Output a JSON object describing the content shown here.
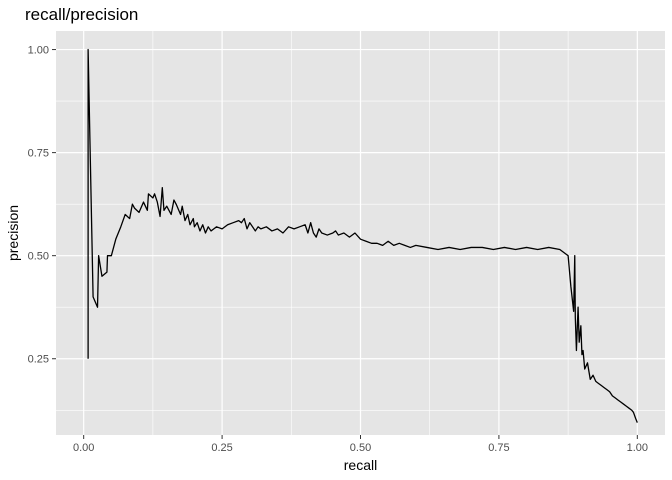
{
  "chart_data": {
    "type": "line",
    "title": "recall/precision",
    "xlabel": "recall",
    "ylabel": "precision",
    "xlim": [
      -0.05,
      1.05
    ],
    "ylim": [
      0.065,
      1.045
    ],
    "x_ticks": [
      {
        "value": 0.0,
        "label": "0.00"
      },
      {
        "value": 0.25,
        "label": "0.25"
      },
      {
        "value": 0.5,
        "label": "0.50"
      },
      {
        "value": 0.75,
        "label": "0.75"
      },
      {
        "value": 1.0,
        "label": "1.00"
      }
    ],
    "y_ticks": [
      {
        "value": 0.25,
        "label": "0.25"
      },
      {
        "value": 0.5,
        "label": "0.50"
      },
      {
        "value": 0.75,
        "label": "0.75"
      },
      {
        "value": 1.0,
        "label": "1.00"
      }
    ],
    "x_minor": [
      0.125,
      0.375,
      0.625,
      0.875
    ],
    "y_minor": [
      0.125,
      0.375,
      0.625,
      0.875
    ],
    "grid": true,
    "panel_background": "#e5e5e5",
    "grid_color": "#ffffff",
    "line_color": "#000000",
    "series": [
      {
        "x": [
          0.008,
          0.008,
          0.017,
          0.025,
          0.027,
          0.033,
          0.042,
          0.043,
          0.05,
          0.058,
          0.067,
          0.075,
          0.083,
          0.088,
          0.092,
          0.1,
          0.108,
          0.115,
          0.117,
          0.125,
          0.128,
          0.133,
          0.138,
          0.142,
          0.145,
          0.15,
          0.158,
          0.163,
          0.167,
          0.175,
          0.178,
          0.183,
          0.188,
          0.192,
          0.198,
          0.2,
          0.205,
          0.21,
          0.215,
          0.22,
          0.225,
          0.23,
          0.235,
          0.24,
          0.25,
          0.26,
          0.27,
          0.28,
          0.285,
          0.29,
          0.295,
          0.3,
          0.31,
          0.315,
          0.32,
          0.33,
          0.34,
          0.35,
          0.36,
          0.37,
          0.38,
          0.39,
          0.4,
          0.405,
          0.41,
          0.415,
          0.42,
          0.425,
          0.43,
          0.44,
          0.45,
          0.455,
          0.46,
          0.47,
          0.48,
          0.49,
          0.5,
          0.51,
          0.52,
          0.53,
          0.54,
          0.55,
          0.56,
          0.57,
          0.58,
          0.59,
          0.6,
          0.62,
          0.64,
          0.66,
          0.68,
          0.7,
          0.72,
          0.74,
          0.76,
          0.78,
          0.8,
          0.82,
          0.84,
          0.86,
          0.87,
          0.875,
          0.88,
          0.885,
          0.887,
          0.888,
          0.89,
          0.893,
          0.895,
          0.898,
          0.9,
          0.902,
          0.905,
          0.91,
          0.915,
          0.92,
          0.925,
          0.93,
          0.935,
          0.94,
          0.945,
          0.95,
          0.955,
          0.96,
          0.965,
          0.97,
          0.975,
          0.98,
          0.985,
          0.99,
          0.993,
          0.997,
          1.0
        ],
        "y": [
          0.25,
          1.0,
          0.4,
          0.375,
          0.5,
          0.45,
          0.46,
          0.5,
          0.5,
          0.54,
          0.57,
          0.6,
          0.59,
          0.625,
          0.615,
          0.605,
          0.63,
          0.61,
          0.65,
          0.64,
          0.65,
          0.63,
          0.595,
          0.665,
          0.61,
          0.62,
          0.6,
          0.635,
          0.625,
          0.6,
          0.62,
          0.585,
          0.6,
          0.575,
          0.59,
          0.57,
          0.58,
          0.56,
          0.575,
          0.555,
          0.57,
          0.56,
          0.565,
          0.57,
          0.565,
          0.575,
          0.58,
          0.585,
          0.58,
          0.59,
          0.565,
          0.58,
          0.56,
          0.57,
          0.565,
          0.57,
          0.56,
          0.565,
          0.555,
          0.57,
          0.565,
          0.57,
          0.575,
          0.555,
          0.58,
          0.555,
          0.545,
          0.565,
          0.555,
          0.55,
          0.555,
          0.56,
          0.55,
          0.555,
          0.545,
          0.555,
          0.54,
          0.535,
          0.53,
          0.53,
          0.525,
          0.535,
          0.525,
          0.53,
          0.525,
          0.52,
          0.525,
          0.52,
          0.515,
          0.52,
          0.515,
          0.52,
          0.52,
          0.515,
          0.52,
          0.515,
          0.52,
          0.515,
          0.52,
          0.515,
          0.505,
          0.5,
          0.425,
          0.365,
          0.5,
          0.35,
          0.27,
          0.375,
          0.29,
          0.33,
          0.26,
          0.27,
          0.225,
          0.24,
          0.2,
          0.21,
          0.195,
          0.19,
          0.185,
          0.18,
          0.175,
          0.17,
          0.16,
          0.155,
          0.15,
          0.145,
          0.14,
          0.135,
          0.13,
          0.125,
          0.12,
          0.105,
          0.095
        ]
      }
    ]
  }
}
